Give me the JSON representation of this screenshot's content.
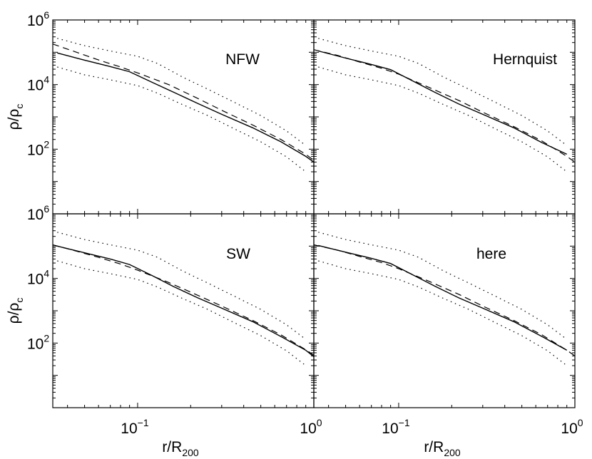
{
  "figure": {
    "y_label_main": "ρ/ρ",
    "y_label_sub": "c",
    "x_label_main": "r/R",
    "x_label_sub": "200"
  },
  "chart_data": [
    {
      "type": "line",
      "panel_label": "NFW",
      "position": "top-left",
      "x_scale": "log",
      "y_scale": "log",
      "xlim": [
        0.033,
        1.0
      ],
      "ylim": [
        1.0,
        1000000.0
      ],
      "x_ticks": [
        {
          "base": "10",
          "exp": "−1"
        },
        {
          "base": "10",
          "exp": "0"
        }
      ],
      "y_ticks": [
        {
          "base": "10",
          "exp": "2"
        },
        {
          "base": "10",
          "exp": "4"
        },
        {
          "base": "10",
          "exp": "6"
        }
      ],
      "series": [
        {
          "style": "solid",
          "x": [
            0.035,
            0.05,
            0.07,
            0.09,
            0.12,
            0.16,
            0.22,
            0.3,
            0.45,
            0.65,
            0.9,
            1.0
          ],
          "y": [
            95000,
            57000,
            36000,
            25000,
            12000,
            5800,
            2600,
            1200,
            460,
            170,
            60,
            40
          ]
        },
        {
          "style": "dashed",
          "x": [
            0.033,
            0.045,
            0.06,
            0.08,
            0.1,
            0.15,
            0.22,
            0.3,
            0.45,
            0.65,
            0.9,
            1.0
          ],
          "y": [
            180000,
            100000,
            58000,
            35000,
            23000,
            10000,
            3700,
            1600,
            560,
            200,
            70,
            45
          ]
        },
        {
          "style": "dotted",
          "x": [
            0.035,
            0.05,
            0.07,
            0.1,
            0.13,
            0.18,
            0.25,
            0.35,
            0.5,
            0.7,
            0.9
          ],
          "y": [
            270000,
            160000,
            110000,
            75000,
            45000,
            17000,
            7200,
            2900,
            1100,
            370,
            130
          ]
        },
        {
          "style": "dotted",
          "x": [
            0.035,
            0.05,
            0.07,
            0.1,
            0.13,
            0.18,
            0.25,
            0.35,
            0.5,
            0.7,
            0.9
          ],
          "y": [
            35000,
            20000,
            14000,
            9300,
            5400,
            2400,
            1100,
            440,
            170,
            58,
            20
          ]
        }
      ]
    },
    {
      "type": "line",
      "panel_label": "Hernquist",
      "position": "top-right",
      "x_scale": "log",
      "y_scale": "log",
      "xlim": [
        0.033,
        1.0
      ],
      "ylim": [
        1.0,
        1000000.0
      ],
      "x_ticks": [
        {
          "base": "10",
          "exp": "−1"
        },
        {
          "base": "10",
          "exp": "0"
        }
      ],
      "y_ticks": [],
      "series": [
        {
          "style": "solid",
          "x": [
            0.035,
            0.05,
            0.07,
            0.09,
            0.12,
            0.16,
            0.22,
            0.3,
            0.45,
            0.65,
            0.9
          ],
          "y": [
            110000,
            66000,
            42000,
            29000,
            13000,
            5800,
            2500,
            1200,
            460,
            160,
            70
          ]
        },
        {
          "style": "dashed",
          "x": [
            0.033,
            0.045,
            0.06,
            0.08,
            0.1,
            0.15,
            0.22,
            0.3,
            0.45,
            0.65,
            0.9,
            1.0
          ],
          "y": [
            120000,
            80000,
            50000,
            32000,
            21000,
            8000,
            3200,
            1400,
            500,
            180,
            60,
            40
          ]
        },
        {
          "style": "dotted",
          "x": [
            0.035,
            0.05,
            0.07,
            0.1,
            0.13,
            0.18,
            0.25,
            0.35,
            0.5,
            0.7,
            0.9
          ],
          "y": [
            270000,
            160000,
            110000,
            75000,
            45000,
            17000,
            7200,
            2900,
            1100,
            370,
            130
          ]
        },
        {
          "style": "dotted",
          "x": [
            0.035,
            0.05,
            0.07,
            0.1,
            0.13,
            0.18,
            0.25,
            0.35,
            0.5,
            0.7,
            0.9
          ],
          "y": [
            35000,
            20000,
            14000,
            9300,
            5400,
            2400,
            1100,
            440,
            170,
            58,
            20
          ]
        }
      ]
    },
    {
      "type": "line",
      "panel_label": "SW",
      "position": "bottom-left",
      "x_scale": "log",
      "y_scale": "log",
      "xlim": [
        0.033,
        1.0
      ],
      "ylim": [
        1.0,
        1000000.0
      ],
      "x_ticks": [
        {
          "base": "10",
          "exp": "−1"
        },
        {
          "base": "10",
          "exp": "0"
        }
      ],
      "y_ticks": [
        {
          "base": "10",
          "exp": "2"
        },
        {
          "base": "10",
          "exp": "4"
        },
        {
          "base": "10",
          "exp": "6"
        }
      ],
      "series": [
        {
          "style": "solid",
          "x": [
            0.035,
            0.05,
            0.07,
            0.09,
            0.12,
            0.16,
            0.22,
            0.3,
            0.45,
            0.65,
            0.9,
            1.0
          ],
          "y": [
            100000,
            62000,
            40000,
            27000,
            12500,
            5600,
            2500,
            1200,
            460,
            160,
            60,
            38
          ]
        },
        {
          "style": "dashed",
          "x": [
            0.033,
            0.045,
            0.06,
            0.08,
            0.1,
            0.15,
            0.22,
            0.3,
            0.45,
            0.65,
            0.9,
            1.0
          ],
          "y": [
            110000,
            70000,
            45000,
            28000,
            18000,
            7500,
            3000,
            1400,
            500,
            180,
            62,
            42
          ]
        },
        {
          "style": "dotted",
          "x": [
            0.035,
            0.05,
            0.07,
            0.1,
            0.13,
            0.18,
            0.25,
            0.35,
            0.5,
            0.7,
            0.9
          ],
          "y": [
            270000,
            160000,
            110000,
            75000,
            45000,
            17000,
            7200,
            2900,
            1100,
            370,
            130
          ]
        },
        {
          "style": "dotted",
          "x": [
            0.035,
            0.05,
            0.07,
            0.1,
            0.13,
            0.18,
            0.25,
            0.35,
            0.5,
            0.7,
            0.9
          ],
          "y": [
            35000,
            20000,
            14000,
            9300,
            5400,
            2400,
            1100,
            440,
            170,
            58,
            20
          ]
        }
      ]
    },
    {
      "type": "line",
      "panel_label": "here",
      "position": "bottom-right",
      "x_scale": "log",
      "y_scale": "log",
      "xlim": [
        0.033,
        1.0
      ],
      "ylim": [
        1.0,
        1000000.0
      ],
      "x_ticks": [
        {
          "base": "10",
          "exp": "−1"
        },
        {
          "base": "10",
          "exp": "0"
        }
      ],
      "y_ticks": [],
      "series": [
        {
          "style": "solid",
          "x": [
            0.035,
            0.05,
            0.07,
            0.09,
            0.12,
            0.16,
            0.22,
            0.3,
            0.45,
            0.65,
            0.9
          ],
          "y": [
            105000,
            65000,
            42000,
            29000,
            13000,
            5800,
            2500,
            1200,
            460,
            160,
            60
          ]
        },
        {
          "style": "dashed",
          "x": [
            0.033,
            0.045,
            0.06,
            0.08,
            0.1,
            0.15,
            0.22,
            0.3,
            0.45,
            0.65,
            0.9,
            1.0
          ],
          "y": [
            110000,
            75000,
            48000,
            31000,
            20000,
            8000,
            3200,
            1400,
            500,
            180,
            60,
            40
          ]
        },
        {
          "style": "dotted",
          "x": [
            0.035,
            0.05,
            0.07,
            0.1,
            0.13,
            0.18,
            0.25,
            0.35,
            0.5,
            0.7,
            0.9
          ],
          "y": [
            270000,
            160000,
            110000,
            75000,
            45000,
            17000,
            7200,
            2900,
            1100,
            370,
            130
          ]
        },
        {
          "style": "dotted",
          "x": [
            0.035,
            0.05,
            0.07,
            0.1,
            0.13,
            0.18,
            0.25,
            0.35,
            0.5,
            0.7,
            0.9
          ],
          "y": [
            35000,
            20000,
            14000,
            9300,
            5400,
            2400,
            1100,
            440,
            170,
            58,
            20
          ]
        }
      ]
    }
  ]
}
